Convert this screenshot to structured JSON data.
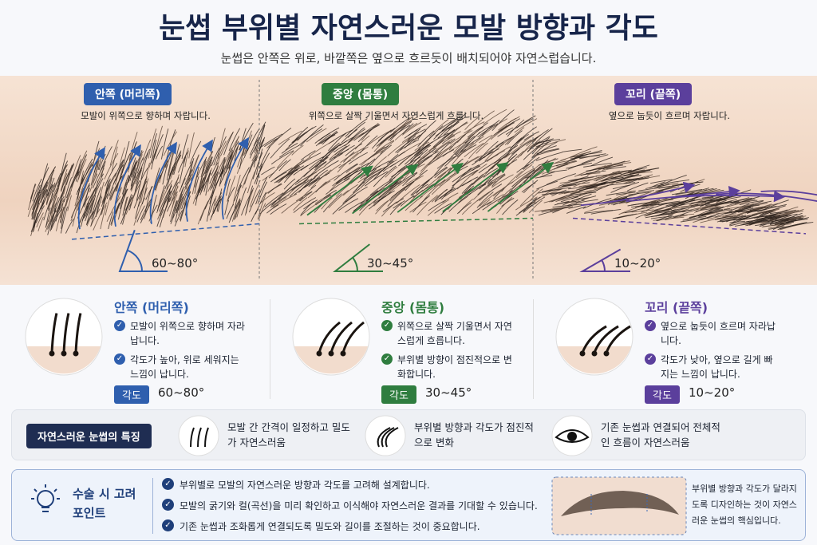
{
  "header": {
    "title": "눈썹 부위별 자연스러운 모발 방향과 각도",
    "subtitle": "눈썹은 안쪽은 위로, 바깥쪽은 옆으로 흐르듯이 배치되어야 자연스럽습니다."
  },
  "zones": [
    {
      "label": "안쪽 (머리쪽)",
      "description": "모발이 위쪽으로 향하며 자랍니다.",
      "angle": "60~80°",
      "color": "#2f5fae",
      "points": [
        "모발이 위쪽으로 향하며 자라납니다.",
        "각도가 높아, 위로 세워지는 느낌이 납니다."
      ]
    },
    {
      "label": "중앙 (몸통)",
      "description": "위쪽으로 살짝 기울면서 자연스럽게 흐릅니다.",
      "angle": "30~45°",
      "color": "#2f7d3f",
      "points": [
        "위쪽으로 살짝 기울면서 자연스럽게 흐릅니다.",
        "부위별 방향이 점진적으로 변화합니다."
      ]
    },
    {
      "label": "꼬리 (끝쪽)",
      "description": "옆으로 눕듯이 흐르며 자랍니다.",
      "angle": "10~20°",
      "color": "#5b3f9c",
      "points": [
        "옆으로 눕듯이 흐르며 자라납니다.",
        "각도가 낮아, 옆으로 길게 빠지는 느낌이 납니다."
      ]
    }
  ],
  "angle_label": "각도",
  "features": {
    "label": "자연스러운 눈썹의 특징",
    "items": [
      "모발 간 간격이 일정하고 밀도가 자연스러움",
      "부위별 방향과 각도가 점진적으로 변화",
      "기존 눈썹과 연결되어 전체적인 흐름이 자연스러움"
    ]
  },
  "tips": {
    "title": "수술 시 고려 포인트",
    "points": [
      "부위별로 모발의 자연스러운 방향과 각도를 고려해 설계합니다.",
      "모발의 굵기와 컬(곡선)을 미리 확인하고 이식해야 자연스러운 결과를 기대할 수 있습니다.",
      "기존 눈썹과 조화롭게 연결되도록 밀도와 길이를 조절하는 것이 중요합니다."
    ],
    "note": "부위별 방향과 각도가 달라지도록 디자인하는 것이 자연스러운 눈썹의 핵심입니다."
  }
}
